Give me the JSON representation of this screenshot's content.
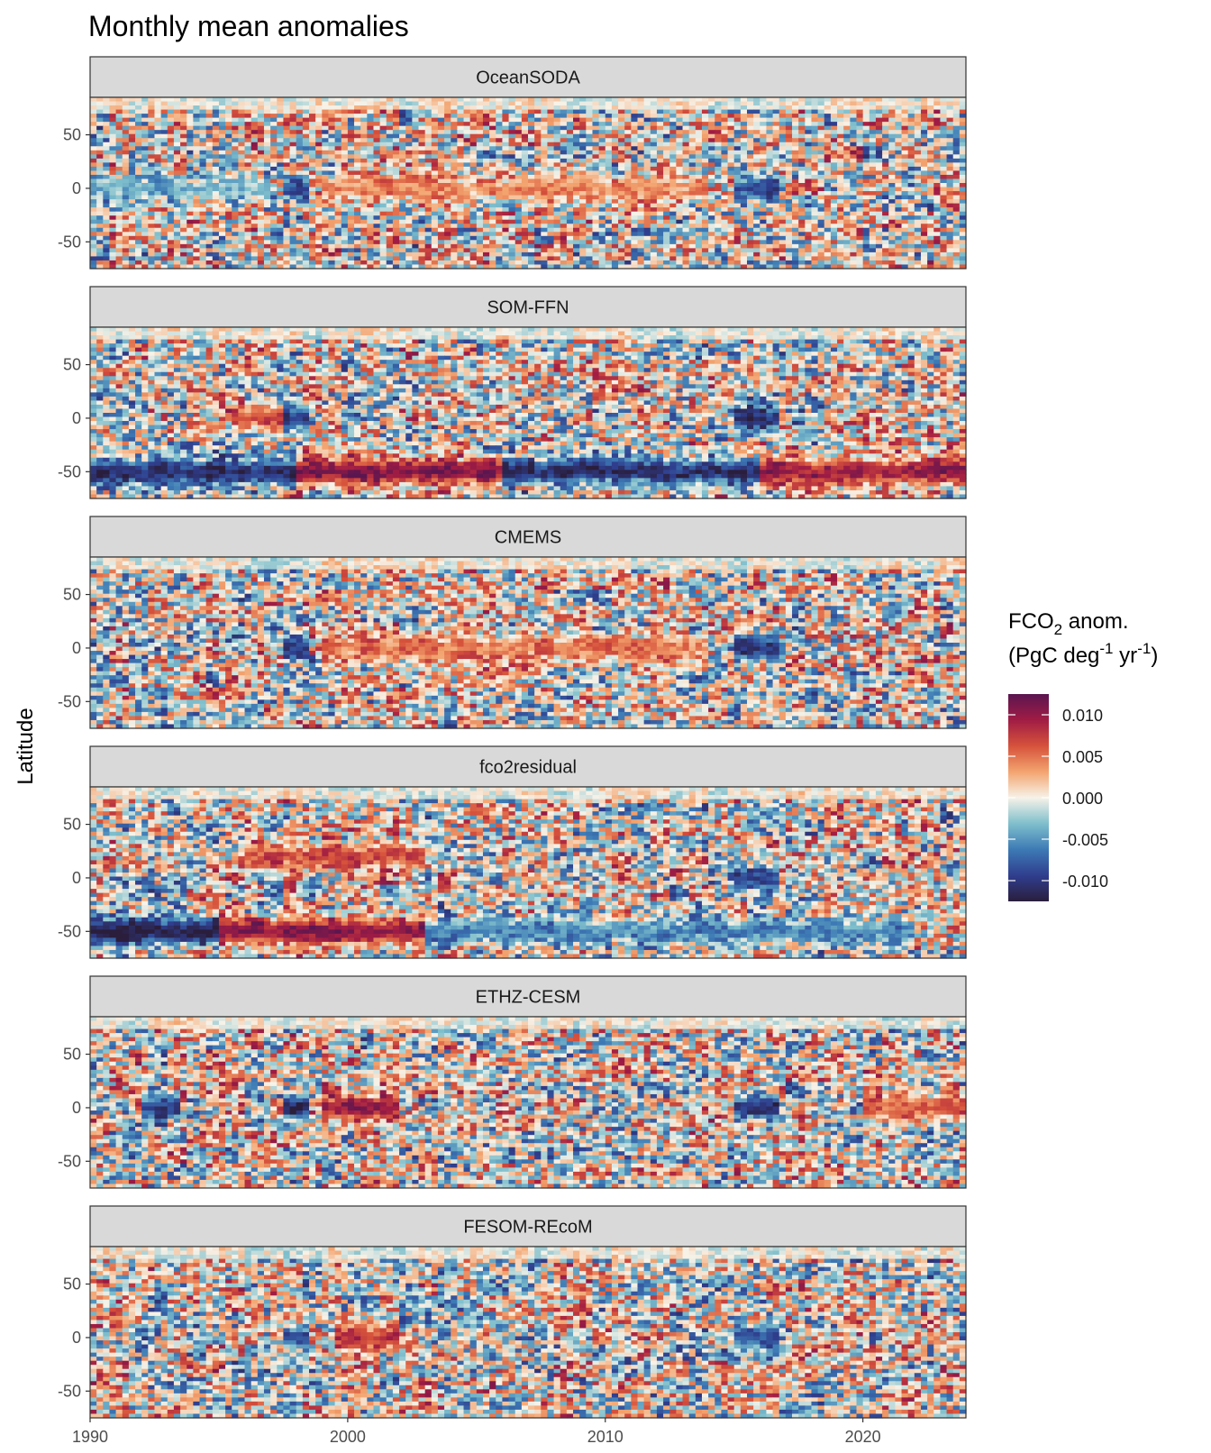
{
  "chart_data": {
    "type": "heatmap",
    "title": "Monthly mean anomalies",
    "ylabel": "Latitude",
    "xlabel": "",
    "x_range": [
      1990,
      2024
    ],
    "ylim": [
      -75,
      85
    ],
    "x_ticks": [
      1990,
      2000,
      2010,
      2020
    ],
    "y_ticks": [
      -50,
      0,
      50
    ],
    "color_scale": {
      "title_main": "FCO",
      "title_sub": "2",
      "title_rest": " anom.",
      "unit_open": "(PgC deg",
      "unit_sup1": "-1",
      "unit_mid": " yr",
      "unit_sup2": "-1",
      "unit_close": ")",
      "limits": [
        -0.0125,
        0.0125
      ],
      "breaks": [
        0.01,
        0.005,
        0.0,
        -0.005,
        -0.01
      ],
      "break_labels": [
        "0.010",
        "0.005",
        "0.000",
        "-0.005",
        "-0.010"
      ],
      "colors": [
        "#2a1e3c",
        "#2f3e8e",
        "#3d7ab5",
        "#7fbfcc",
        "#f7f2e8",
        "#f3a46f",
        "#d6523b",
        "#a01c44",
        "#5b1650"
      ]
    },
    "panels": [
      {
        "name": "OceanSODA",
        "features": [
          {
            "x_start": 1997.5,
            "x_end": 1998.5,
            "lat": 0,
            "value": -0.009
          },
          {
            "x_start": 2015.0,
            "x_end": 2016.8,
            "lat": 0,
            "value": -0.009
          },
          {
            "x_start": 1990.0,
            "x_end": 1997.0,
            "lat": 0,
            "value": -0.004
          },
          {
            "x_start": 1999.0,
            "x_end": 2014.0,
            "lat": 0,
            "value": 0.004
          }
        ]
      },
      {
        "name": "SOM-FFN",
        "features": [
          {
            "x_start": 1990.0,
            "x_end": 1998.0,
            "lat": -50,
            "value": -0.011
          },
          {
            "x_start": 1998.0,
            "x_end": 2006.0,
            "lat": -50,
            "value": 0.011
          },
          {
            "x_start": 2006.0,
            "x_end": 2016.0,
            "lat": -50,
            "value": -0.011
          },
          {
            "x_start": 2016.0,
            "x_end": 2024.0,
            "lat": -50,
            "value": 0.01
          },
          {
            "x_start": 1995.5,
            "x_end": 1997.5,
            "lat": 0,
            "value": 0.006
          },
          {
            "x_start": 1997.5,
            "x_end": 1998.5,
            "lat": 0,
            "value": -0.01
          },
          {
            "x_start": 2015.0,
            "x_end": 2016.8,
            "lat": 0,
            "value": -0.01
          }
        ]
      },
      {
        "name": "CMEMS",
        "features": [
          {
            "x_start": 1997.5,
            "x_end": 1998.5,
            "lat": 0,
            "value": -0.01
          },
          {
            "x_start": 2015.0,
            "x_end": 2016.8,
            "lat": 0,
            "value": -0.01
          },
          {
            "x_start": 1999.0,
            "x_end": 2014.0,
            "lat": 0,
            "value": 0.005
          }
        ]
      },
      {
        "name": "fco2residual",
        "features": [
          {
            "x_start": 1990.0,
            "x_end": 1995.0,
            "lat": -50,
            "value": -0.012
          },
          {
            "x_start": 1995.0,
            "x_end": 2003.0,
            "lat": -50,
            "value": 0.011
          },
          {
            "x_start": 2003.0,
            "x_end": 2022.0,
            "lat": -50,
            "value": -0.006
          },
          {
            "x_start": 1996.0,
            "x_end": 2003.0,
            "lat": 20,
            "value": 0.007
          },
          {
            "x_start": 2015.0,
            "x_end": 2016.8,
            "lat": 0,
            "value": -0.009
          }
        ]
      },
      {
        "name": "ETHZ-CESM",
        "features": [
          {
            "x_start": 1992.0,
            "x_end": 1993.5,
            "lat": 0,
            "value": -0.01
          },
          {
            "x_start": 1997.5,
            "x_end": 1998.5,
            "lat": 0,
            "value": -0.011
          },
          {
            "x_start": 1999.0,
            "x_end": 2002.0,
            "lat": 0,
            "value": 0.01
          },
          {
            "x_start": 2015.0,
            "x_end": 2016.8,
            "lat": 0,
            "value": -0.011
          },
          {
            "x_start": 2020.0,
            "x_end": 2024.0,
            "lat": 0,
            "value": 0.006
          }
        ]
      },
      {
        "name": "FESOM-REcoM",
        "features": [
          {
            "x_start": 1997.5,
            "x_end": 1998.5,
            "lat": 0,
            "value": -0.009
          },
          {
            "x_start": 1999.5,
            "x_end": 2002.0,
            "lat": 0,
            "value": 0.008
          },
          {
            "x_start": 2015.0,
            "x_end": 2016.8,
            "lat": 0,
            "value": -0.007
          }
        ]
      }
    ]
  }
}
